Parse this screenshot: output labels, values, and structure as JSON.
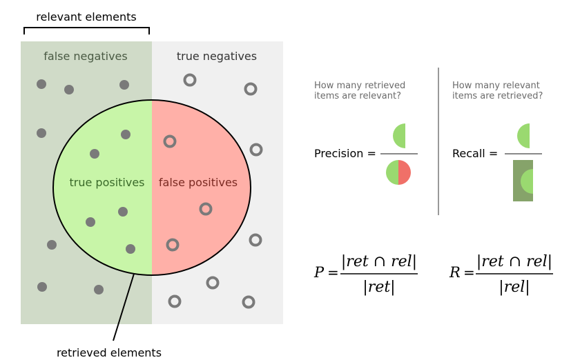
{
  "labels": {
    "relevant_elements": "relevant elements",
    "false_negatives": "false negatives",
    "true_negatives": "true negatives",
    "true_positives": "true positives",
    "false_positives": "false positives",
    "retrieved_elements": "retrieved elements"
  },
  "precision": {
    "question_line1": "How many retrieved",
    "question_line2": "items are relevant?",
    "label": "Precision =",
    "formula": {
      "lhs": "P",
      "equals": "=",
      "numerator": "|ret ∩ rel|",
      "denominator": "|ret|"
    }
  },
  "recall": {
    "question_line1": "How many relevant",
    "question_line2": "items are retrieved?",
    "label": "Recall =",
    "formula": {
      "lhs": "R",
      "equals": "=",
      "numerator": "|ret ∩ rel|",
      "denominator": "|rel|"
    }
  },
  "colors": {
    "relevant_bg": "#d0dbc8",
    "nonrelevant_bg": "#f0f0f0",
    "true_positive": "#c8f5a8",
    "false_positive": "#ffb0a8",
    "tp_icon": "#9ad970",
    "fp_icon": "#f07068",
    "recall_box": "#86a36a",
    "dot": "#7a7a7a",
    "text_dark": "#333333",
    "text_green": "#3a6a2a",
    "text_red": "#7a2a22",
    "text_grey": "#6a6a6a"
  }
}
